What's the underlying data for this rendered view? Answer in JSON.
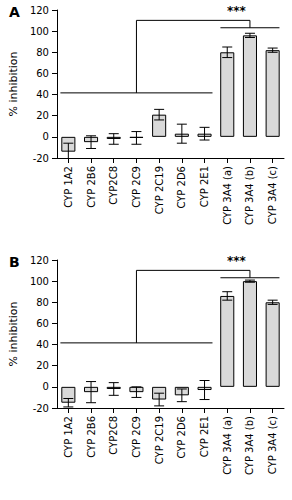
{
  "chart_data": [
    {
      "type": "bar",
      "title": "A",
      "ylabel": "% inhibition",
      "categories": [
        "CYP 1A2",
        "CYP 2B6",
        "CYP2C8",
        "CYP 2C9",
        "CYP 2C19",
        "CYP 2D6",
        "CYP 2E1",
        "CYP 3A4 (a)",
        "CYP 3A4 (b)",
        "CYP 3A4 (c)"
      ],
      "values": [
        -14,
        -5,
        -2,
        -1,
        21,
        3,
        3,
        80,
        96,
        82
      ],
      "errors": [
        8,
        6,
        5,
        6,
        5,
        9,
        6,
        5,
        2,
        2
      ],
      "color": "#d9d9d9",
      "ylim": [
        -20,
        120
      ],
      "yticks": [
        -20,
        0,
        20,
        40,
        60,
        80,
        100,
        120
      ],
      "grid": false,
      "annotations": [
        {
          "text": "***",
          "groups": [
            [
              "CYP 1A2",
              "CYP 2E1"
            ],
            [
              "CYP 3A4 (a)",
              "CYP 3A4 (c)"
            ]
          ]
        }
      ]
    },
    {
      "type": "bar",
      "title": "B",
      "ylabel": "% inhibition",
      "categories": [
        "CYP 1A2",
        "CYP 2B6",
        "CYP2C8",
        "CYP 2C9",
        "CYP 2C19",
        "CYP 2D6",
        "CYP 2E1",
        "CYP 3A4 (a)",
        "CYP 3A4 (b)",
        "CYP 3A4 (c)"
      ],
      "values": [
        -15,
        -5,
        -2,
        -5,
        -12,
        -8,
        -3,
        86,
        100,
        80
      ],
      "errors": [
        4,
        10,
        6,
        5,
        6,
        6,
        9,
        4,
        1,
        2
      ],
      "color": "#d9d9d9",
      "ylim": [
        -20,
        120
      ],
      "yticks": [
        -20,
        0,
        20,
        40,
        60,
        80,
        100,
        120
      ],
      "grid": false,
      "annotations": [
        {
          "text": "***",
          "groups": [
            [
              "CYP 1A2",
              "CYP 2E1"
            ],
            [
              "CYP 3A4 (a)",
              "CYP 3A4 (c)"
            ]
          ]
        }
      ]
    }
  ]
}
